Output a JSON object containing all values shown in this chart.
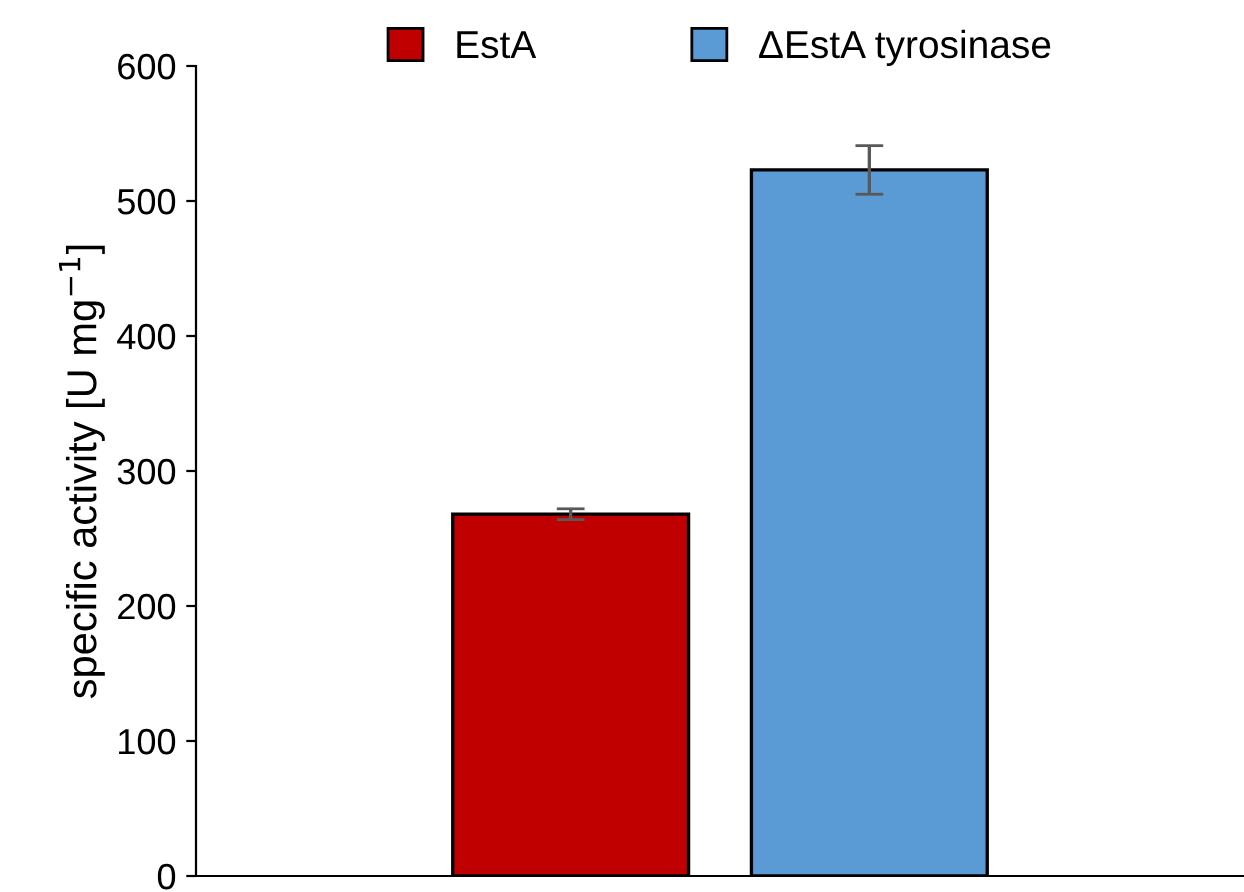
{
  "chart_data": {
    "type": "bar",
    "ylabel": "specific activity [U mg$^{−1}$]",
    "categories": [
      null
    ],
    "series": [
      {
        "name": "EstA",
        "color": "#c00000",
        "values": [
          268
        ],
        "errors": [
          4
        ]
      },
      {
        "name": "ΔEstA tyrosinase",
        "color": "#5b9bd5",
        "values": [
          523
        ],
        "errors": [
          18
        ]
      }
    ],
    "ylim": [
      0,
      600
    ],
    "yticks": [
      0,
      100,
      200,
      300,
      400,
      500,
      600
    ],
    "grid": false,
    "legend": "top"
  }
}
